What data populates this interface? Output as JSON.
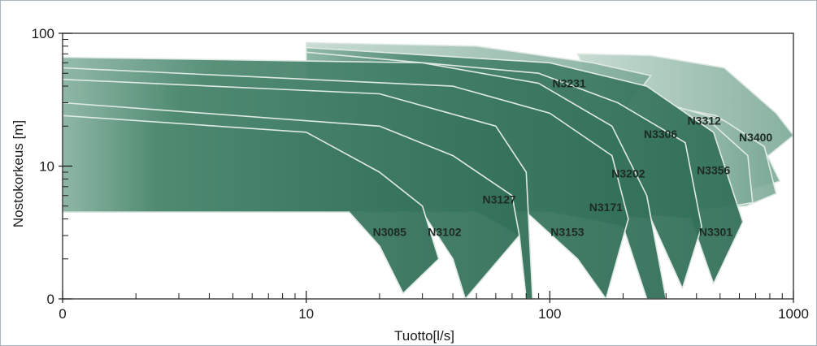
{
  "chart_data": {
    "type": "area",
    "title": "",
    "xlabel": "Tuotto[l/s]",
    "ylabel": "Nostokorkeus [m]",
    "x_scale": "log",
    "x_ticks": [
      {
        "value": 1,
        "label": "0"
      },
      {
        "value": 10,
        "label": "10"
      },
      {
        "value": 100,
        "label": "100"
      },
      {
        "value": 1000,
        "label": "1000"
      }
    ],
    "y_ticks": [
      {
        "value": 1,
        "label": "0"
      },
      {
        "value": 10,
        "label": "10"
      },
      {
        "value": 100,
        "label": "100"
      }
    ],
    "xlim": [
      1,
      1000
    ],
    "ylim": [
      1,
      100
    ],
    "grid": false,
    "fill_color": "#3d7a62",
    "fill_color_light": "#9fc1b2",
    "edge_color": "#dfe9e4",
    "series": [
      {
        "name": "N3400",
        "pts": [
          [
            130,
            70
          ],
          [
            260,
            68
          ],
          [
            520,
            55
          ],
          [
            850,
            25
          ],
          [
            1000,
            17
          ],
          [
            650,
            9
          ],
          [
            420,
            6.5
          ],
          [
            250,
            5
          ]
        ],
        "shade": 0.8
      },
      {
        "name": "N3356",
        "pts": [
          [
            190,
            25
          ],
          [
            260,
            30
          ],
          [
            480,
            24
          ],
          [
            750,
            14
          ],
          [
            880,
            7.7
          ],
          [
            560,
            6
          ],
          [
            380,
            5.1
          ],
          [
            200,
            5
          ]
        ],
        "shade": 0.72
      },
      {
        "name": "N3312",
        "pts": [
          [
            200,
            28
          ],
          [
            290,
            30
          ],
          [
            520,
            22
          ],
          [
            760,
            14
          ],
          [
            850,
            6.2
          ],
          [
            640,
            5
          ],
          [
            420,
            4.8
          ],
          [
            250,
            4.6
          ]
        ],
        "shade": 0.66
      },
      {
        "name": "N3306",
        "pts": [
          [
            200,
            25
          ],
          [
            320,
            24
          ],
          [
            450,
            22
          ],
          [
            650,
            12
          ],
          [
            680,
            5.3
          ],
          [
            480,
            4.8
          ],
          [
            280,
            4.6
          ]
        ],
        "shade": 0.6
      },
      {
        "name": "N3231",
        "pts": [
          [
            10,
            85
          ],
          [
            50,
            80
          ],
          [
            150,
            60
          ],
          [
            260,
            48
          ],
          [
            190,
            23
          ],
          [
            150,
            20
          ],
          [
            60,
            14
          ],
          [
            10,
            12
          ]
        ],
        "shade": 0.55
      },
      {
        "name": "N3301",
        "pts": [
          [
            10,
            78
          ],
          [
            100,
            60
          ],
          [
            250,
            40
          ],
          [
            470,
            18
          ],
          [
            620,
            3.8
          ],
          [
            470,
            1.3
          ],
          [
            380,
            4
          ],
          [
            180,
            4.5
          ],
          [
            10,
            4.5
          ]
        ],
        "shade": 0.25
      },
      {
        "name": "N3202",
        "pts": [
          [
            10,
            72
          ],
          [
            90,
            50
          ],
          [
            190,
            30
          ],
          [
            360,
            15
          ],
          [
            420,
            3.5
          ],
          [
            350,
            1.2
          ],
          [
            260,
            4
          ],
          [
            130,
            4.5
          ],
          [
            10,
            4.5
          ]
        ],
        "shade": 0.3
      },
      {
        "name": "N3171",
        "pts": [
          [
            1,
            66
          ],
          [
            30,
            60
          ],
          [
            90,
            42
          ],
          [
            180,
            20
          ],
          [
            250,
            6
          ],
          [
            300,
            1
          ],
          [
            250,
            1
          ],
          [
            200,
            3.5
          ],
          [
            100,
            4.5
          ],
          [
            1,
            4.5
          ]
        ],
        "shade": 0.35
      },
      {
        "name": "N3153",
        "pts": [
          [
            1,
            55
          ],
          [
            40,
            40
          ],
          [
            100,
            25
          ],
          [
            180,
            12
          ],
          [
            210,
            4
          ],
          [
            170,
            1
          ],
          [
            130,
            2
          ],
          [
            80,
            4.5
          ],
          [
            1,
            4.5
          ]
        ],
        "shade": 0.38
      },
      {
        "name": "N3127",
        "pts": [
          [
            1,
            45
          ],
          [
            20,
            35
          ],
          [
            60,
            20
          ],
          [
            80,
            9
          ],
          [
            85,
            1
          ],
          [
            80,
            1
          ],
          [
            75,
            3
          ],
          [
            50,
            4.5
          ],
          [
            1,
            4.5
          ]
        ],
        "shade": 0.42
      },
      {
        "name": "N3102",
        "pts": [
          [
            1,
            30
          ],
          [
            20,
            20
          ],
          [
            40,
            12
          ],
          [
            70,
            6
          ],
          [
            75,
            3
          ],
          [
            45,
            1
          ],
          [
            40,
            2
          ],
          [
            30,
            4.5
          ],
          [
            1,
            4.5
          ]
        ],
        "shade": 0.45
      },
      {
        "name": "N3085",
        "pts": [
          [
            1,
            24
          ],
          [
            10,
            18
          ],
          [
            20,
            9
          ],
          [
            30,
            5
          ],
          [
            35,
            2
          ],
          [
            25,
            1.1
          ],
          [
            20,
            2.5
          ],
          [
            15,
            4.5
          ],
          [
            1,
            4.5
          ]
        ],
        "shade": 0.5
      }
    ],
    "labels": [
      {
        "text": "N3231",
        "x": 120,
        "y": 42
      },
      {
        "text": "N3312",
        "x": 430,
        "y": 22
      },
      {
        "text": "N3306",
        "x": 285,
        "y": 17.5
      },
      {
        "text": "N3400",
        "x": 700,
        "y": 16.5
      },
      {
        "text": "N3356",
        "x": 470,
        "y": 9.3
      },
      {
        "text": "N3202",
        "x": 210,
        "y": 8.8
      },
      {
        "text": "N3171",
        "x": 170,
        "y": 4.9
      },
      {
        "text": "N3127",
        "x": 62,
        "y": 5.6
      },
      {
        "text": "N3085",
        "x": 22,
        "y": 3.2
      },
      {
        "text": "N3102",
        "x": 37,
        "y": 3.2
      },
      {
        "text": "N3153",
        "x": 118,
        "y": 3.2
      },
      {
        "text": "N3301",
        "x": 480,
        "y": 3.2
      }
    ]
  }
}
